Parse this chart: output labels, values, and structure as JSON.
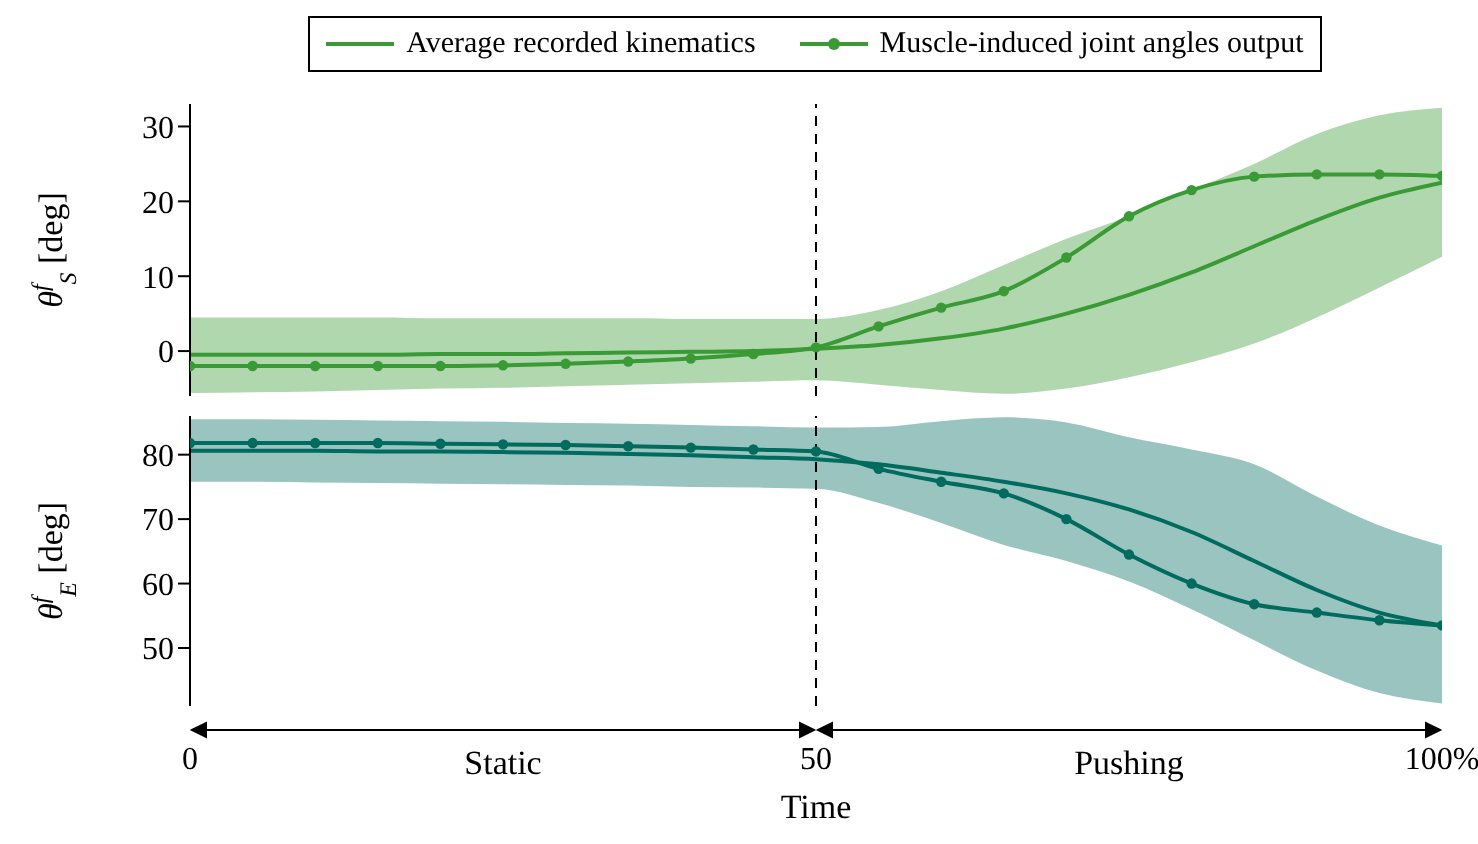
{
  "chart_data": [
    {
      "type": "line",
      "ylabel": "θ$^{f}$$_{S}$ [deg]",
      "legend": "top",
      "grid": false,
      "tick_labels": "y",
      "xlim": [
        0,
        100
      ],
      "ylim": [
        -6,
        33
      ],
      "yticks": [
        0,
        10,
        20,
        30
      ],
      "ref_lines": [
        {
          "axis": "x",
          "value": 50,
          "line_style": "dashed",
          "color": "#000000"
        }
      ],
      "series": [
        {
          "name": "Average recorded kinematics",
          "color": "#3a9a35",
          "marker": "none",
          "line_style": "solid",
          "x": [
            0,
            5,
            10,
            15,
            20,
            25,
            30,
            35,
            40,
            45,
            50,
            55,
            60,
            65,
            70,
            75,
            80,
            85,
            90,
            95,
            100
          ],
          "values": [
            -0.5,
            -0.5,
            -0.5,
            -0.5,
            -0.4,
            -0.4,
            -0.3,
            -0.2,
            -0.1,
            0,
            0.3,
            0.8,
            1.7,
            3,
            5,
            7.5,
            10.5,
            14,
            17.5,
            20.5,
            22.5
          ],
          "lower": [
            -5.6,
            -5.5,
            -5.4,
            -5.2,
            -5,
            -4.9,
            -4.7,
            -4.5,
            -4.3,
            -4.1,
            -3.9,
            -4.5,
            -5.2,
            -5.7,
            -5,
            -3.5,
            -1.5,
            1,
            4.5,
            8.5,
            12.6
          ],
          "upper": [
            4.5,
            4.5,
            4.5,
            4.5,
            4.4,
            4.4,
            4.4,
            4.4,
            4.3,
            4.3,
            4.3,
            5.5,
            8,
            11.5,
            15,
            18,
            21.5,
            25,
            29,
            31.5,
            32.5
          ]
        },
        {
          "name": "Muscle-induced joint angles output",
          "color": "#3a9a35",
          "marker": "circle",
          "line_style": "solid",
          "x": [
            0,
            5,
            10,
            15,
            20,
            25,
            30,
            35,
            40,
            45,
            50,
            55,
            60,
            65,
            70,
            75,
            80,
            85,
            90,
            95,
            100
          ],
          "values": [
            -2,
            -2,
            -2,
            -2,
            -2,
            -1.9,
            -1.7,
            -1.4,
            -1,
            -0.4,
            0.5,
            3.3,
            5.8,
            8,
            12.5,
            18,
            21.5,
            23.3,
            23.6,
            23.6,
            23.4
          ]
        }
      ]
    },
    {
      "type": "line",
      "ylabel": "θ$^{f}$$_{E}$ [deg]",
      "xlabel": "Time",
      "grid": false,
      "xlim": [
        0,
        100
      ],
      "xticks": [
        0,
        50,
        {
          "value": 100,
          "label": "100%"
        }
      ],
      "ylim": [
        41,
        86
      ],
      "yticks": [
        50,
        60,
        70,
        80
      ],
      "ref_lines": [
        {
          "axis": "x",
          "value": 50,
          "line_style": "dashed",
          "color": "#000000"
        }
      ],
      "annotations": [
        "Static",
        "Pushing"
      ],
      "series": [
        {
          "color": "#006b5e",
          "marker": "none",
          "line_style": "solid",
          "x": [
            0,
            5,
            10,
            15,
            20,
            25,
            30,
            35,
            40,
            45,
            50,
            55,
            60,
            65,
            70,
            75,
            80,
            85,
            90,
            95,
            100
          ],
          "values": [
            80.6,
            80.6,
            80.6,
            80.5,
            80.5,
            80.4,
            80.3,
            80.1,
            79.9,
            79.6,
            79.3,
            78.5,
            77.2,
            75.8,
            74,
            71.5,
            68,
            63.5,
            59,
            55.5,
            53.5
          ],
          "lower": [
            75.8,
            75.8,
            75.7,
            75.6,
            75.5,
            75.4,
            75.3,
            75.2,
            75,
            74.9,
            74.7,
            72.5,
            69.4,
            66,
            63.5,
            60.3,
            56,
            51.2,
            46.5,
            43,
            41.4
          ],
          "upper": [
            85.5,
            85.5,
            85.4,
            85.3,
            85.2,
            85.1,
            84.9,
            84.8,
            84.6,
            84.4,
            84.2,
            84.3,
            85.2,
            85.8,
            85,
            82.7,
            80.8,
            78.5,
            73.5,
            69,
            65.9
          ]
        },
        {
          "color": "#006b5e",
          "marker": "circle",
          "line_style": "solid",
          "x": [
            0,
            5,
            10,
            15,
            20,
            25,
            30,
            35,
            40,
            45,
            50,
            55,
            60,
            65,
            70,
            75,
            80,
            85,
            90,
            95,
            100
          ],
          "values": [
            81.8,
            81.8,
            81.8,
            81.8,
            81.7,
            81.6,
            81.5,
            81.3,
            81.1,
            80.8,
            80.5,
            77.8,
            75.8,
            74,
            70,
            64.5,
            60,
            56.8,
            55.5,
            54.3,
            53.5
          ]
        }
      ]
    }
  ]
}
